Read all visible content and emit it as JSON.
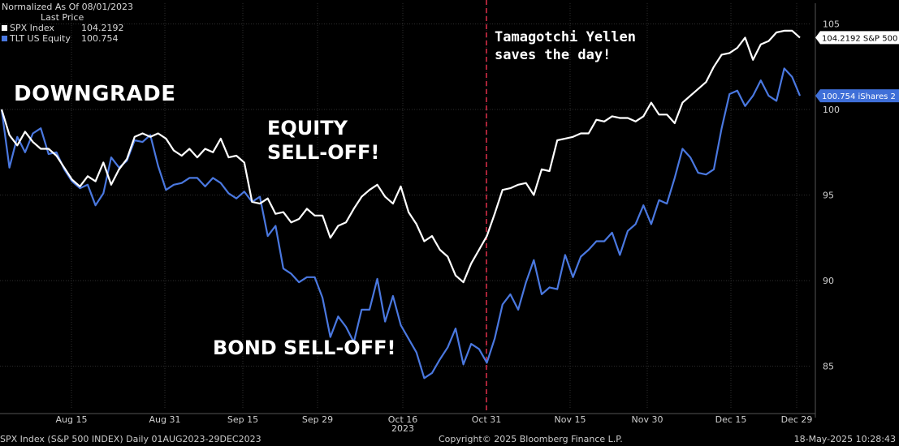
{
  "header": {
    "normalized": "Normalized As Of 08/01/2023",
    "last_price": "Last Price"
  },
  "legend": [
    {
      "name": "SPX Index",
      "value": "104.2192",
      "color": "#ffffff"
    },
    {
      "name": "TLT US Equity",
      "value": "100.754",
      "color": "#4a78e0"
    }
  ],
  "annotations": {
    "downgrade": "DOWNGRADE",
    "equity1": "EQUITY",
    "equity2": "SELL-OFF!",
    "bond": "BOND SELL-OFF!",
    "yellen1": "Tamagotchi Yellen",
    "yellen2": "saves the day!"
  },
  "footer": {
    "left": "SPX Index (S&P 500 INDEX)  Daily 01AUG2023-29DEC2023",
    "middle": "Copyright© 2025 Bloomberg Finance L.P.",
    "right": "18-May-2025 10:28:43"
  },
  "chart_data": {
    "type": "line",
    "ylim": [
      82,
      106
    ],
    "y_ticks": [
      85,
      90,
      95,
      100,
      105
    ],
    "x_ticks": [
      "Aug 15",
      "Aug 31",
      "Sep 15",
      "Sep 29",
      "Oct 16",
      "Oct 31",
      "Nov 15",
      "Nov 30",
      "Dec 15",
      "Dec 29"
    ],
    "x_year_label": "2023",
    "event_line_label": "Oct 31",
    "end_labels": [
      {
        "series": "SPX Index",
        "text": "104.2192 S&P 500 I"
      },
      {
        "series": "TLT US Equity",
        "text": "100.754  iShares 2"
      }
    ],
    "series": [
      {
        "name": "SPX Index",
        "color": "#ffffff",
        "values": [
          100.0,
          98.5,
          97.9,
          98.7,
          98.1,
          97.7,
          97.7,
          97.3,
          96.6,
          95.9,
          95.5,
          96.1,
          95.8,
          96.9,
          95.6,
          96.5,
          97.1,
          98.4,
          98.6,
          98.4,
          98.6,
          98.3,
          97.6,
          97.3,
          97.7,
          97.2,
          97.7,
          97.5,
          98.3,
          97.2,
          97.3,
          96.9,
          94.6,
          94.5,
          94.8,
          93.9,
          94.0,
          93.4,
          93.6,
          94.2,
          93.8,
          93.8,
          92.5,
          93.2,
          93.4,
          94.2,
          94.9,
          95.3,
          95.6,
          94.9,
          94.5,
          95.5,
          94.0,
          93.3,
          92.3,
          92.6,
          91.8,
          91.4,
          90.3,
          89.9,
          91.0,
          91.8,
          92.6,
          93.9,
          95.3,
          95.4,
          95.6,
          95.7,
          95.0,
          96.5,
          96.4,
          98.2,
          98.3,
          98.4,
          98.6,
          98.6,
          99.4,
          99.3,
          99.6,
          99.5,
          99.5,
          99.3,
          99.6,
          100.4,
          99.7,
          99.7,
          99.2,
          100.4,
          100.8,
          101.2,
          101.6,
          102.5,
          103.2,
          103.3,
          103.6,
          104.2,
          102.9,
          103.8,
          104.0,
          104.5,
          104.6,
          104.6,
          104.2
        ]
      },
      {
        "name": "TLT US Equity",
        "color": "#4a78e0",
        "values": [
          100.0,
          96.6,
          98.4,
          97.5,
          98.6,
          98.9,
          97.4,
          97.5,
          96.5,
          95.8,
          95.4,
          95.6,
          94.4,
          95.1,
          97.2,
          96.6,
          97.0,
          98.2,
          98.1,
          98.5,
          96.7,
          95.3,
          95.6,
          95.7,
          96.0,
          96.0,
          95.5,
          96.0,
          95.7,
          95.1,
          94.8,
          95.2,
          94.6,
          94.9,
          92.6,
          93.2,
          90.7,
          90.4,
          89.9,
          90.2,
          90.2,
          89.0,
          86.7,
          87.9,
          87.3,
          86.4,
          88.3,
          88.3,
          90.1,
          87.6,
          89.1,
          87.4,
          86.6,
          85.8,
          84.3,
          84.6,
          85.4,
          86.1,
          87.2,
          85.1,
          86.3,
          86.0,
          85.2,
          86.6,
          88.6,
          89.2,
          88.3,
          89.9,
          91.2,
          89.2,
          89.6,
          89.5,
          91.5,
          90.2,
          91.4,
          91.8,
          92.3,
          92.3,
          92.8,
          91.5,
          92.9,
          93.3,
          94.4,
          93.3,
          94.7,
          94.5,
          96.0,
          97.7,
          97.2,
          96.3,
          96.2,
          96.5,
          98.9,
          100.9,
          101.1,
          100.2,
          100.8,
          101.7,
          100.8,
          100.5,
          102.4,
          101.9,
          100.8
        ]
      }
    ]
  }
}
